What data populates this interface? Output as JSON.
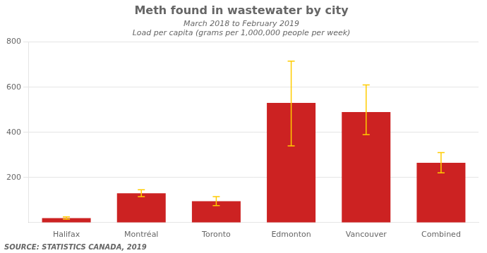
{
  "chart_data": {
    "type": "bar",
    "title": "Meth found in wastewater by city",
    "subtitle": "March 2018 to February 2019",
    "ylabel": "Load per capita (grams per 1,000,000 people per week)",
    "source": "SOURCE: STATISTICS CANADA, 2019",
    "categories": [
      "Halifax",
      "Montréal",
      "Toronto",
      "Edmonton",
      "Vancouver",
      "Combined"
    ],
    "values": [
      20,
      130,
      95,
      530,
      490,
      265
    ],
    "color": "#cc2222",
    "error_bars": {
      "upper": [
        5,
        15,
        20,
        185,
        120,
        45
      ],
      "lower": [
        5,
        15,
        20,
        190,
        100,
        45
      ],
      "color": "#ffcc00"
    },
    "ylim": [
      0,
      800
    ],
    "yticks": [
      200,
      400,
      600,
      800
    ],
    "grid": true
  }
}
